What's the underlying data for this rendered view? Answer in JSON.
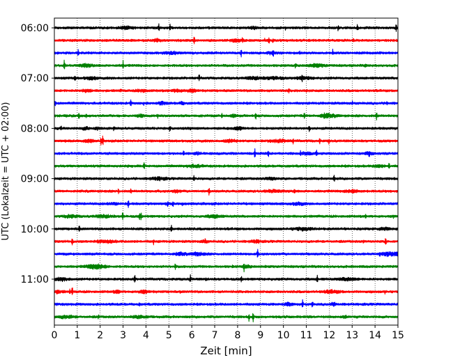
{
  "chart_data": {
    "type": "line",
    "title": "",
    "xlabel": "Zeit  [min]",
    "ylabel": "UTC (Lokalzeit = UTC + 02:00)",
    "xlim": [
      0,
      15
    ],
    "x_ticks": [
      "0",
      "1",
      "2",
      "3",
      "4",
      "5",
      "6",
      "7",
      "8",
      "9",
      "10",
      "11",
      "12",
      "13",
      "14",
      "15"
    ],
    "y_ticks": [
      "06:00",
      "07:00",
      "08:00",
      "09:00",
      "10:00",
      "11:00"
    ],
    "grid": "vertical dotted lines at each minute",
    "trace_colors_cycle": [
      "#000000",
      "#ff0000",
      "#0000ff",
      "#008000"
    ],
    "traces": [
      {
        "start": "06:00",
        "color": "#000000"
      },
      {
        "start": "06:15",
        "color": "#ff0000"
      },
      {
        "start": "06:30",
        "color": "#0000ff"
      },
      {
        "start": "06:45",
        "color": "#008000"
      },
      {
        "start": "07:00",
        "color": "#000000"
      },
      {
        "start": "07:15",
        "color": "#ff0000"
      },
      {
        "start": "07:30",
        "color": "#0000ff"
      },
      {
        "start": "07:45",
        "color": "#008000"
      },
      {
        "start": "08:00",
        "color": "#000000"
      },
      {
        "start": "08:15",
        "color": "#ff0000"
      },
      {
        "start": "08:30",
        "color": "#0000ff"
      },
      {
        "start": "08:45",
        "color": "#008000"
      },
      {
        "start": "09:00",
        "color": "#000000"
      },
      {
        "start": "09:15",
        "color": "#ff0000"
      },
      {
        "start": "09:30",
        "color": "#0000ff"
      },
      {
        "start": "09:45",
        "color": "#008000"
      },
      {
        "start": "10:00",
        "color": "#000000"
      },
      {
        "start": "10:15",
        "color": "#ff0000"
      },
      {
        "start": "10:30",
        "color": "#0000ff"
      },
      {
        "start": "10:45",
        "color": "#008000"
      },
      {
        "start": "11:00",
        "color": "#000000"
      },
      {
        "start": "11:15",
        "color": "#ff0000"
      },
      {
        "start": "11:30",
        "color": "#0000ff"
      },
      {
        "start": "11:45",
        "color": "#008000"
      }
    ]
  }
}
